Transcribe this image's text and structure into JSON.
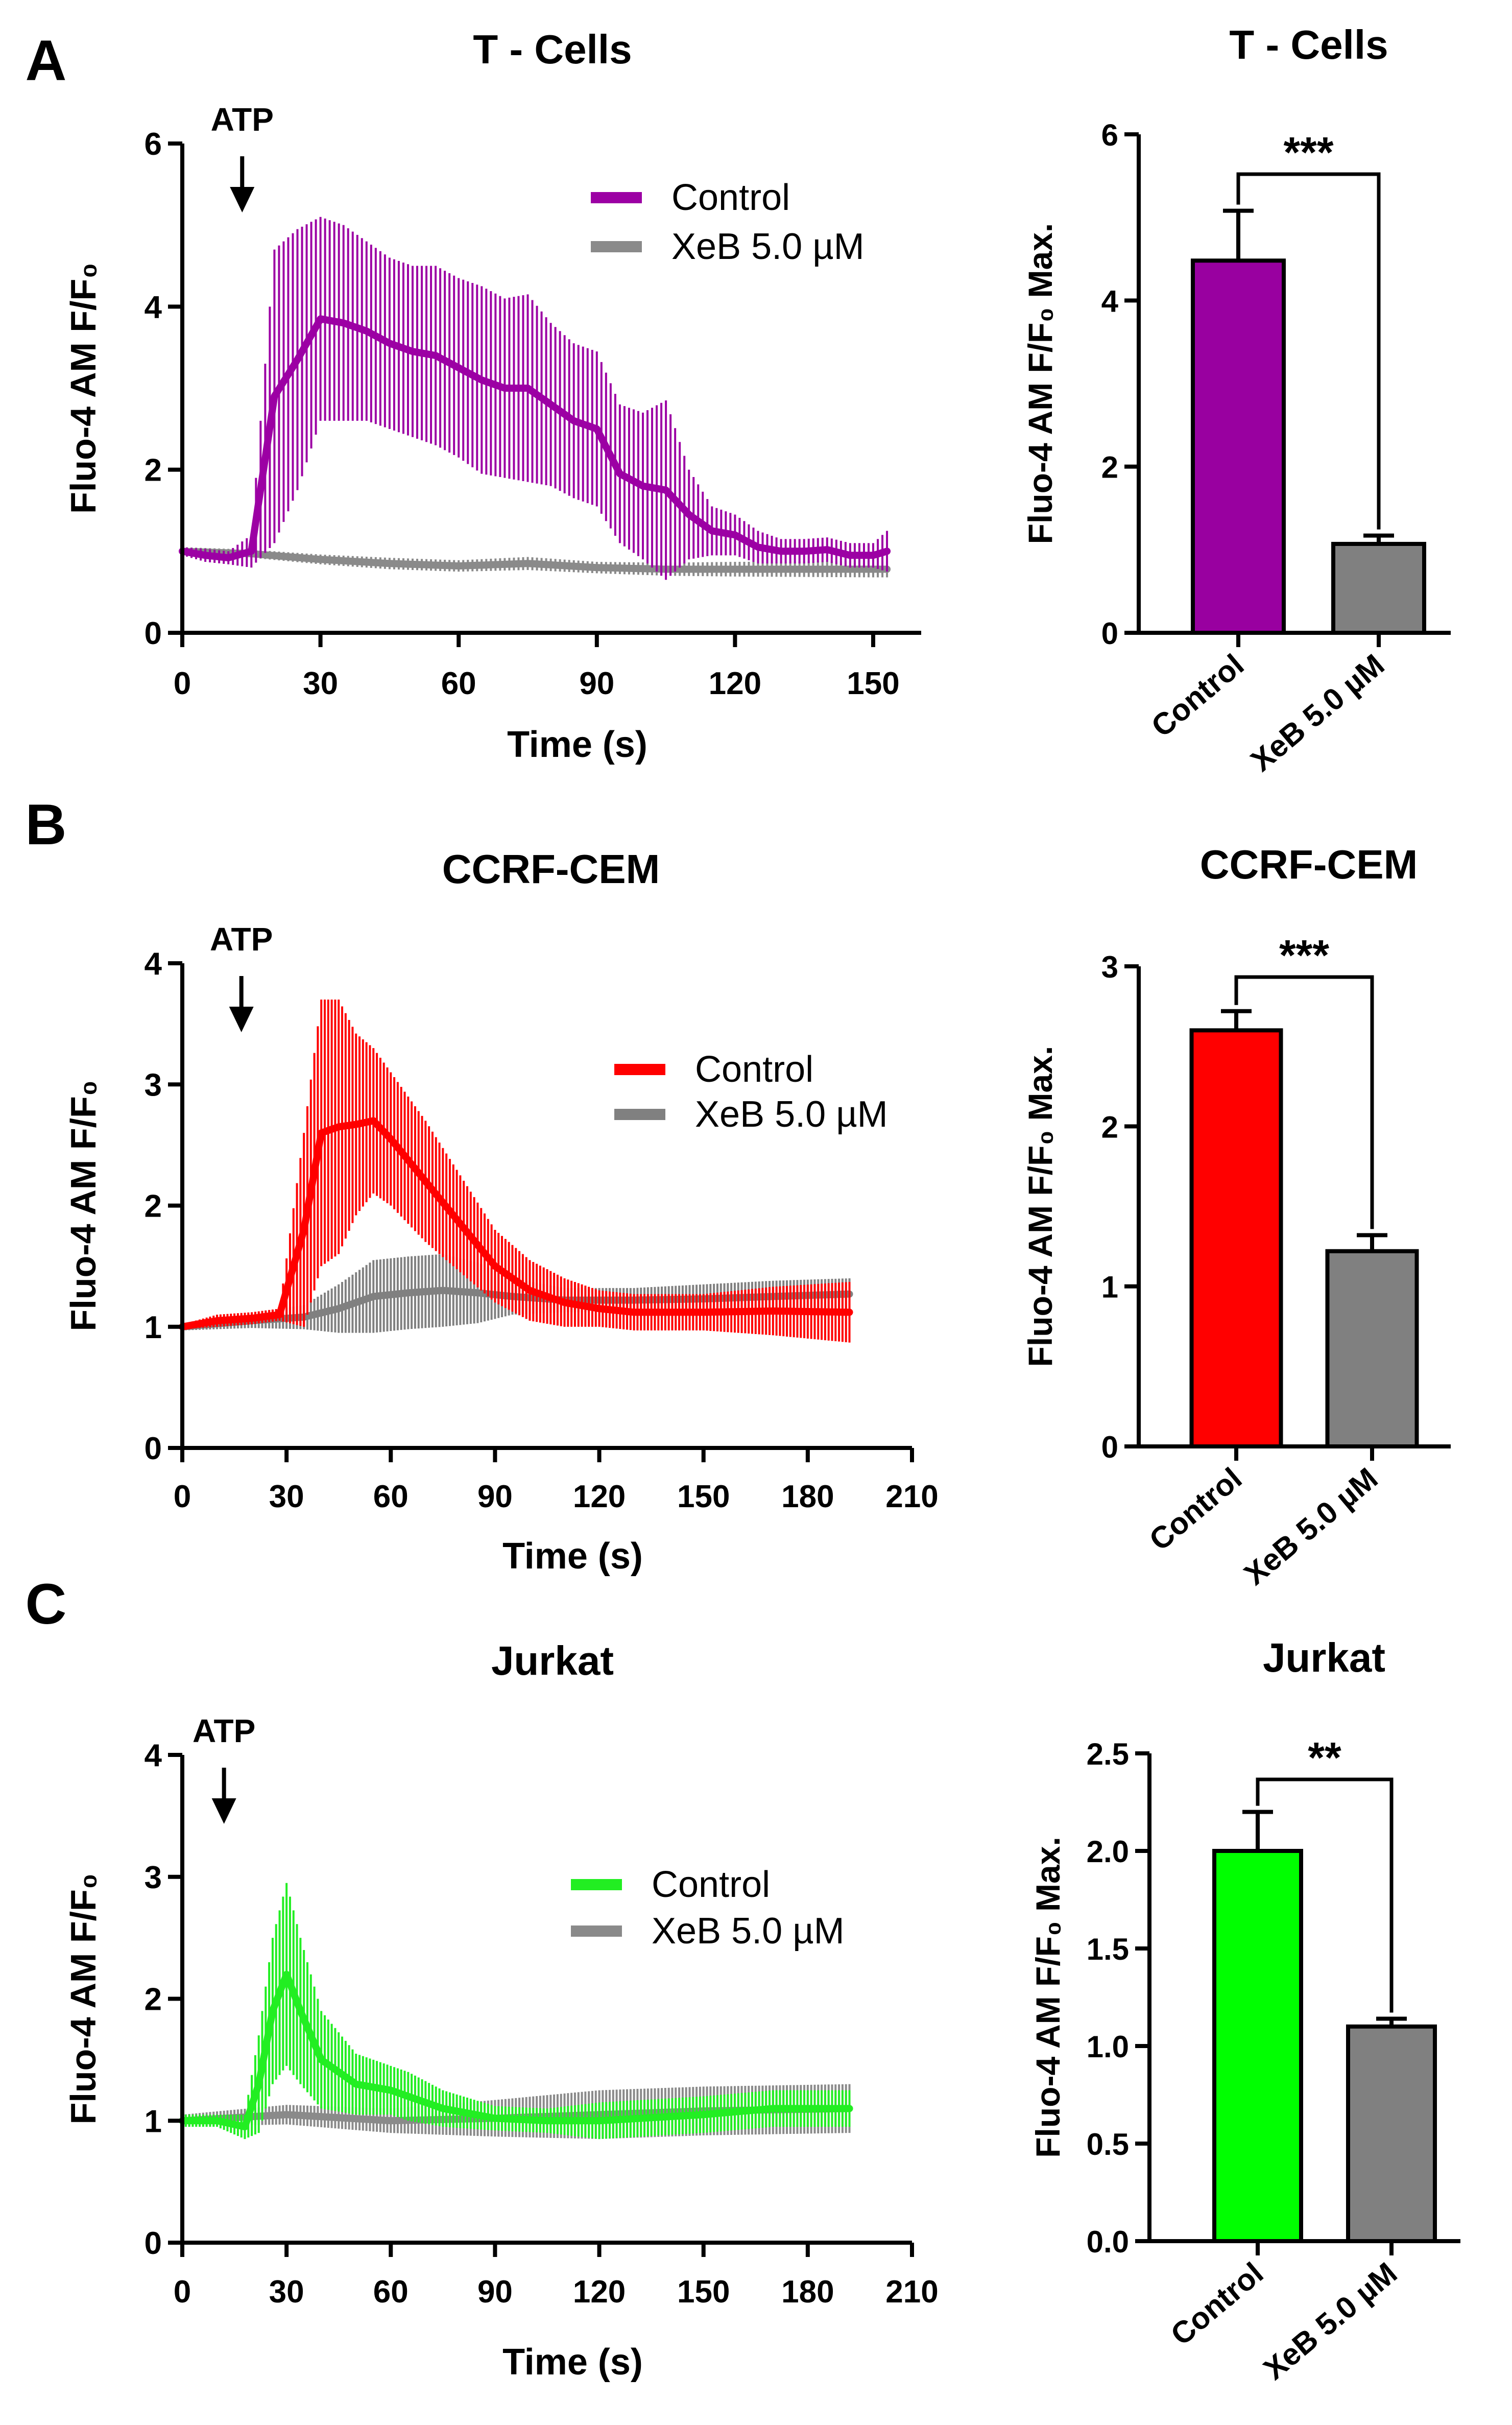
{
  "panels": [
    {
      "letter": "A",
      "line": {
        "type": "line",
        "title": "T - Cells",
        "xlabel": "Time (s)",
        "ylabel": "Fluo-4 AM  F/F₀",
        "annotation": "ATP",
        "annotation_x": 13,
        "xlim": [
          0,
          160
        ],
        "ylim": [
          0,
          6
        ],
        "xticks": [
          "0",
          "30",
          "60",
          "90",
          "120",
          "150"
        ],
        "yticks": [
          "0",
          "2",
          "4",
          "6"
        ],
        "legend_position": "top-right",
        "series": [
          {
            "name": "Control",
            "color": "#9c00a4",
            "x": [
              0,
              5,
              10,
              15,
              20,
              25,
              30,
              35,
              40,
              45,
              50,
              55,
              60,
              65,
              70,
              75,
              80,
              85,
              90,
              95,
              100,
              105,
              110,
              115,
              120,
              125,
              130,
              135,
              140,
              145,
              150,
              153
            ],
            "y": [
              1.0,
              0.95,
              0.92,
              1.0,
              2.9,
              3.35,
              3.85,
              3.8,
              3.7,
              3.55,
              3.45,
              3.4,
              3.25,
              3.1,
              3.0,
              3.0,
              2.8,
              2.6,
              2.5,
              1.95,
              1.8,
              1.75,
              1.45,
              1.25,
              1.2,
              1.05,
              1.0,
              1.0,
              1.02,
              0.95,
              0.95,
              1.0
            ],
            "err": [
              0.05,
              0.08,
              0.08,
              0.2,
              1.8,
              1.6,
              1.25,
              1.2,
              1.1,
              1.05,
              1.05,
              1.1,
              1.1,
              1.15,
              1.1,
              1.15,
              1.0,
              0.95,
              0.95,
              0.85,
              0.9,
              1.1,
              0.55,
              0.3,
              0.25,
              0.2,
              0.15,
              0.15,
              0.15,
              0.15,
              0.15,
              0.25
            ]
          },
          {
            "name": "XeB 5.0 µM",
            "color": "#8a8a8a",
            "x": [
              0,
              15,
              30,
              45,
              60,
              75,
              90,
              105,
              120,
              150,
              153
            ],
            "y": [
              1.0,
              0.97,
              0.9,
              0.85,
              0.82,
              0.85,
              0.8,
              0.78,
              0.78,
              0.78,
              0.78
            ],
            "err": [
              0.05,
              0.05,
              0.06,
              0.07,
              0.07,
              0.08,
              0.07,
              0.08,
              0.09,
              0.1,
              0.1
            ]
          }
        ]
      },
      "bar": {
        "type": "bar",
        "title": "T - Cells",
        "ylabel": "Fluo-4 AM F/F₀ Max.",
        "categories": [
          "Control",
          "XeB 5.0 µM"
        ],
        "values": [
          4.48,
          1.07
        ],
        "errors": [
          0.6,
          0.1
        ],
        "colors": [
          "#9900a0",
          "#808080"
        ],
        "ylim": [
          0,
          6
        ],
        "yticks": [
          "0",
          "2",
          "4",
          "6"
        ],
        "significance": "***"
      }
    },
    {
      "letter": "B",
      "line": {
        "type": "line",
        "title": "CCRF-CEM",
        "xlabel": "Time (s)",
        "ylabel": "Fluo-4 AM  F/F₀",
        "annotation": "ATP",
        "annotation_x": 17,
        "xlim": [
          0,
          210
        ],
        "ylim": [
          0,
          4
        ],
        "xticks": [
          "0",
          "30",
          "60",
          "90",
          "120",
          "150",
          "180",
          "210"
        ],
        "yticks": [
          "0",
          "1",
          "2",
          "3",
          "4"
        ],
        "legend_position": "top-right",
        "series": [
          {
            "name": "Control",
            "color": "#ff0000",
            "x": [
              0,
              10,
              20,
              28,
              35,
              40,
              45,
              50,
              55,
              60,
              70,
              80,
              90,
              100,
              110,
              120,
              130,
              150,
              170,
              192
            ],
            "y": [
              1.0,
              1.05,
              1.07,
              1.1,
              1.8,
              2.6,
              2.65,
              2.67,
              2.7,
              2.55,
              2.2,
              1.85,
              1.5,
              1.3,
              1.2,
              1.15,
              1.12,
              1.12,
              1.13,
              1.12
            ],
            "err": [
              0.02,
              0.05,
              0.05,
              0.05,
              0.8,
              1.1,
              1.05,
              0.75,
              0.6,
              0.55,
              0.5,
              0.4,
              0.3,
              0.25,
              0.2,
              0.15,
              0.15,
              0.15,
              0.2,
              0.25
            ]
          },
          {
            "name": "XeB 5.0 µM",
            "color": "#808080",
            "x": [
              0,
              20,
              35,
              45,
              55,
              65,
              75,
              85,
              95,
              110,
              130,
              150,
              170,
              192
            ],
            "y": [
              1.0,
              1.05,
              1.08,
              1.15,
              1.25,
              1.28,
              1.3,
              1.28,
              1.25,
              1.22,
              1.22,
              1.23,
              1.25,
              1.27
            ],
            "err": [
              0.03,
              0.06,
              0.1,
              0.2,
              0.3,
              0.3,
              0.3,
              0.25,
              0.15,
              0.1,
              0.1,
              0.12,
              0.13,
              0.13
            ]
          }
        ]
      },
      "bar": {
        "type": "bar",
        "title": "CCRF-CEM",
        "ylabel": "Fluo-4 AM F/F₀ Max.",
        "categories": [
          "Control",
          "XeB 5.0 µM"
        ],
        "values": [
          2.6,
          1.22
        ],
        "errors": [
          0.12,
          0.1
        ],
        "colors": [
          "#ff0000",
          "#808080"
        ],
        "ylim": [
          0,
          3
        ],
        "yticks": [
          "0",
          "1",
          "2",
          "3"
        ],
        "significance": "***"
      }
    },
    {
      "letter": "C",
      "line": {
        "type": "line",
        "title": "Jurkat",
        "xlabel": "Time (s)",
        "ylabel": "Fluo-4 AM  F/F₀",
        "annotation": "ATP",
        "annotation_x": 12,
        "xlim": [
          0,
          210
        ],
        "ylim": [
          0,
          4
        ],
        "xticks": [
          "0",
          "30",
          "60",
          "90",
          "120",
          "150",
          "180",
          "210"
        ],
        "yticks": [
          "0",
          "1",
          "2",
          "3",
          "4"
        ],
        "legend_position": "top-right",
        "series": [
          {
            "name": "Control",
            "color": "#22ee22",
            "x": [
              0,
              10,
              18,
              22,
              26,
              30,
              34,
              40,
              50,
              60,
              65,
              75,
              90,
              105,
              120,
              150,
              170,
              192
            ],
            "y": [
              1.0,
              1.0,
              0.95,
              1.3,
              1.9,
              2.2,
              1.9,
              1.5,
              1.3,
              1.25,
              1.2,
              1.1,
              1.02,
              1.0,
              1.0,
              1.05,
              1.1,
              1.1
            ],
            "err": [
              0.05,
              0.05,
              0.1,
              0.4,
              0.6,
              0.75,
              0.6,
              0.4,
              0.25,
              0.2,
              0.2,
              0.15,
              0.1,
              0.1,
              0.15,
              0.15,
              0.15,
              0.15
            ]
          },
          {
            "name": "XeB 5.0 µM",
            "color": "#8a8a8a",
            "x": [
              0,
              30,
              60,
              90,
              120,
              150,
              192
            ],
            "y": [
              1.0,
              1.05,
              1.0,
              1.02,
              1.05,
              1.08,
              1.1
            ],
            "err": [
              0.05,
              0.08,
              0.1,
              0.15,
              0.2,
              0.2,
              0.2
            ]
          }
        ]
      },
      "bar": {
        "type": "bar",
        "title": "Jurkat",
        "ylabel": "Fluo-4 AM F/F₀ Max.",
        "categories": [
          "Control",
          "XeB 5.0 µM"
        ],
        "values": [
          2.0,
          1.1
        ],
        "errors": [
          0.2,
          0.04
        ],
        "colors": [
          "#00ff00",
          "#808080"
        ],
        "ylim": [
          0,
          2.5
        ],
        "yticks": [
          "0.0",
          "0.5",
          "1.0",
          "1.5",
          "2.0",
          "2.5"
        ],
        "significance": "**"
      }
    }
  ]
}
